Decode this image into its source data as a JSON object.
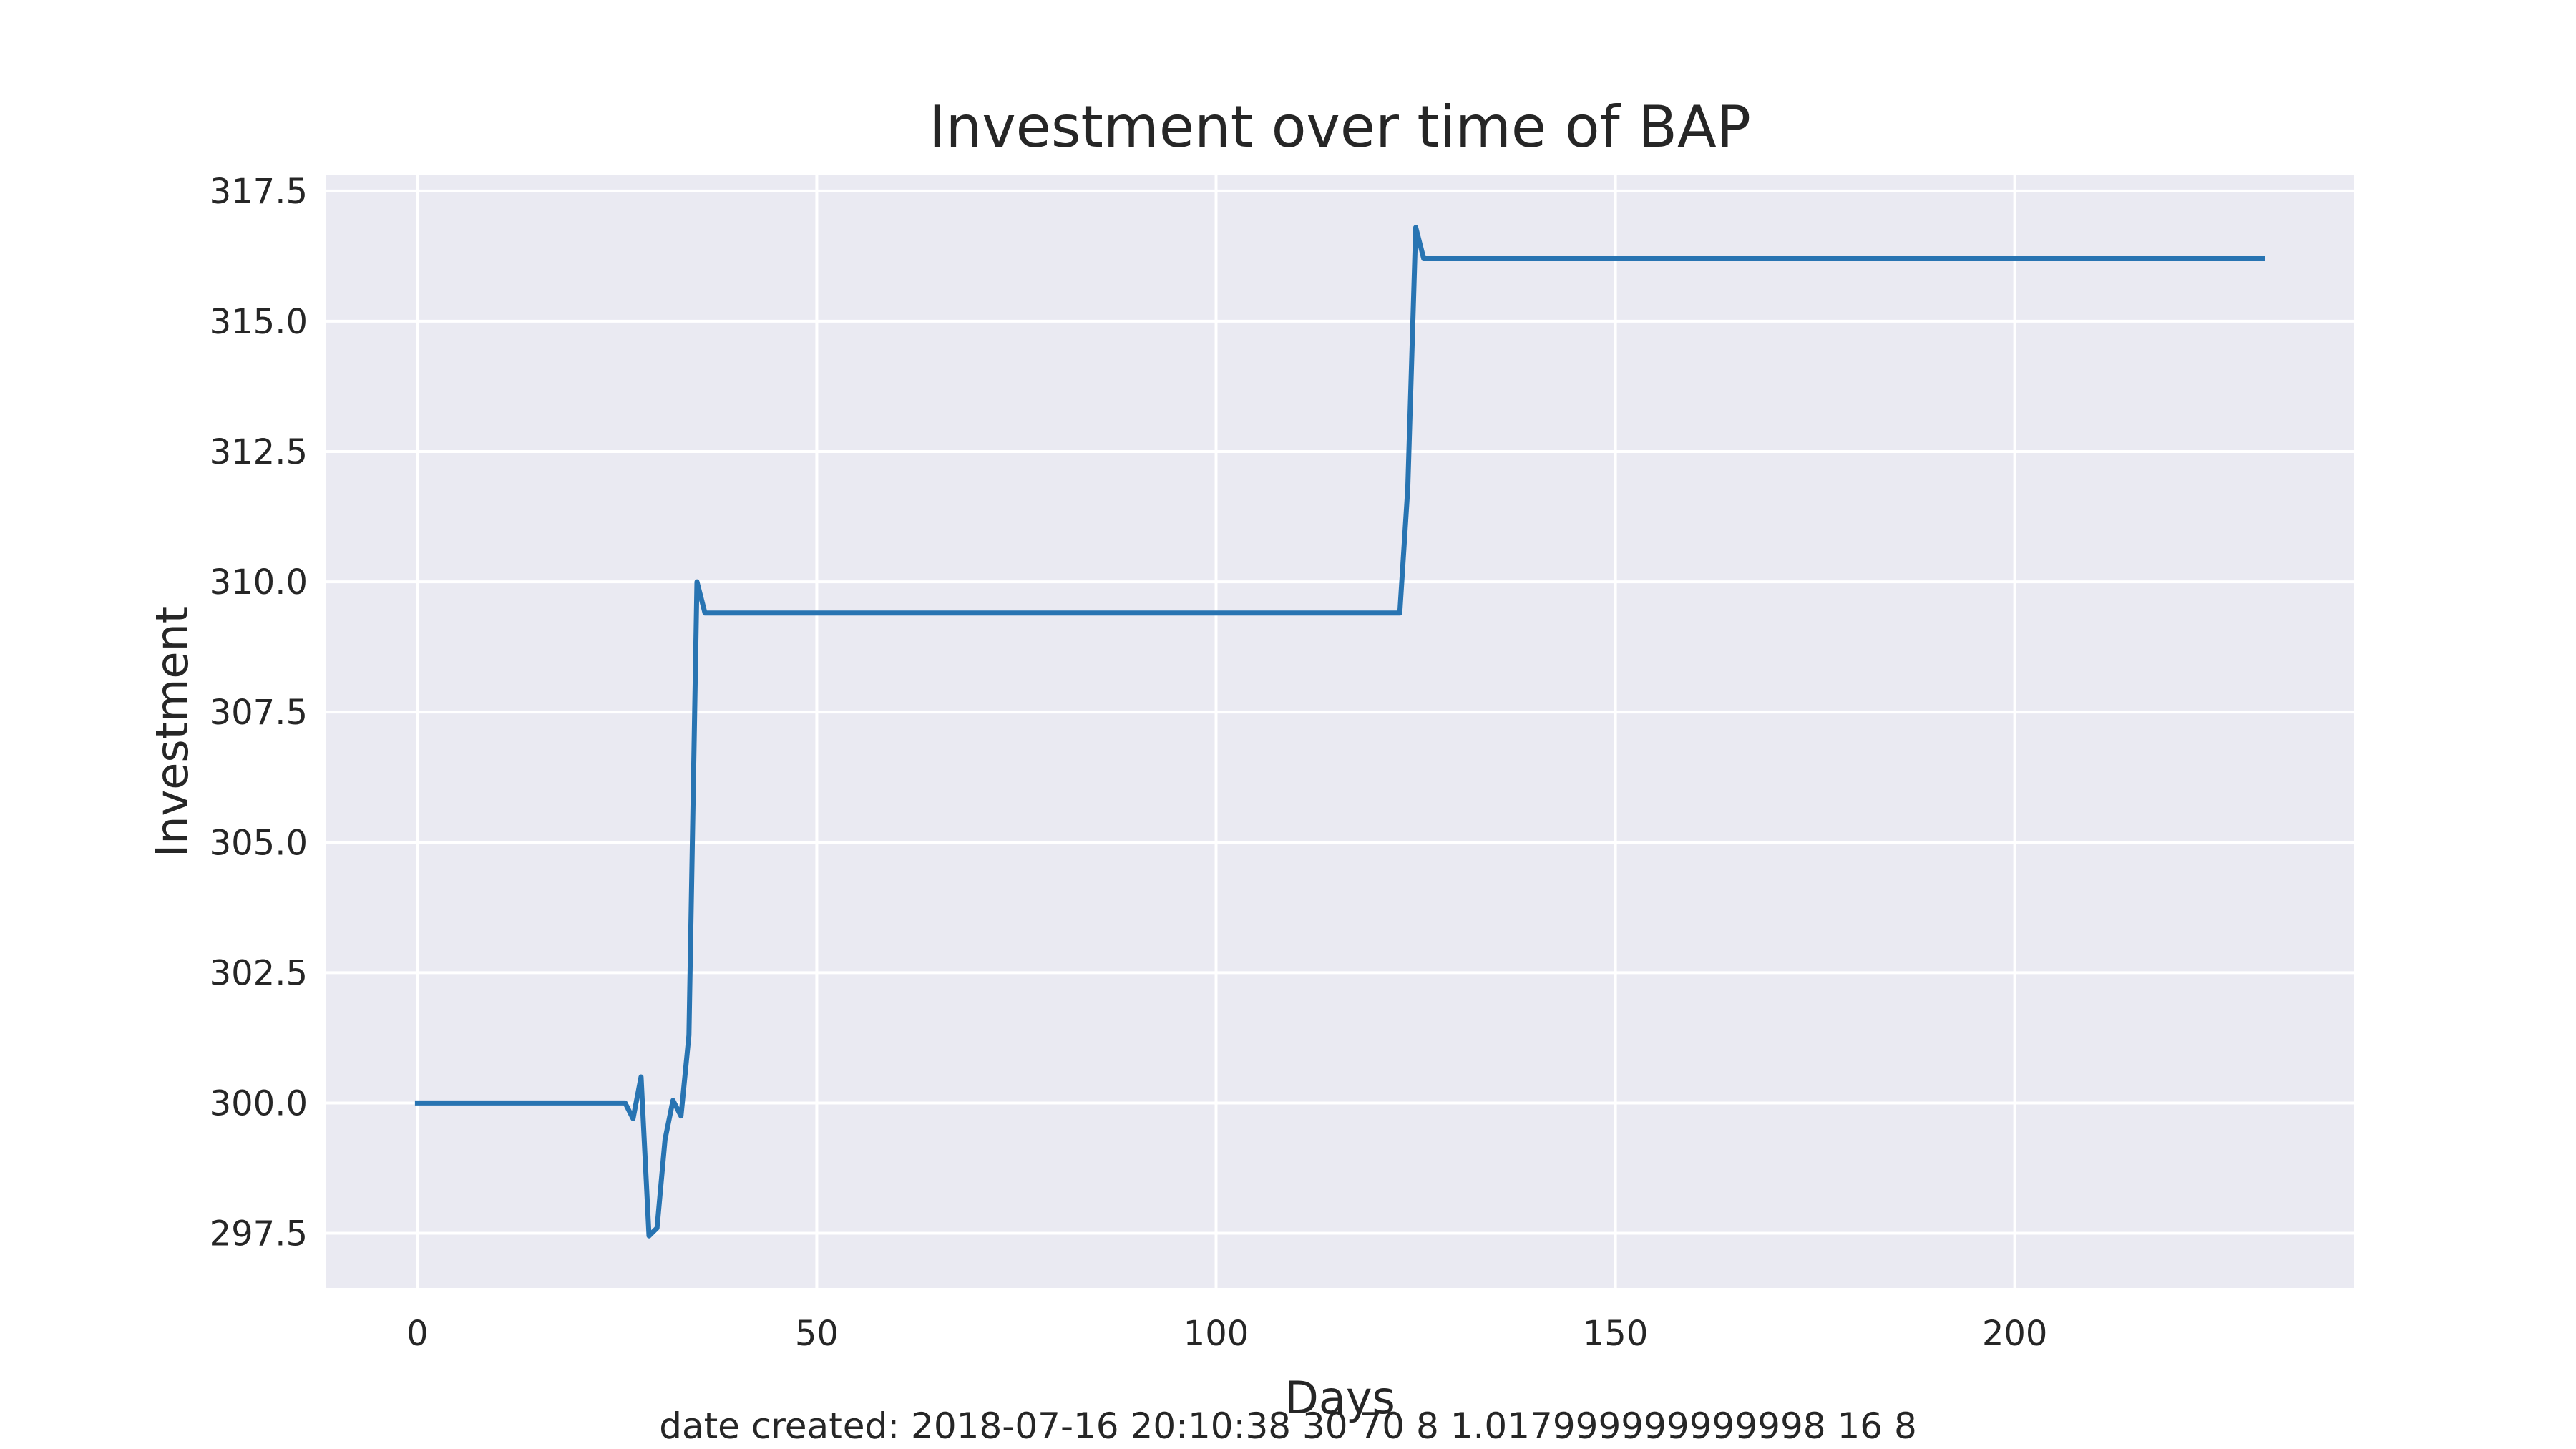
{
  "chart_data": {
    "type": "line",
    "title": "Investment over time of BAP",
    "xlabel": "Days",
    "ylabel": "Investment",
    "footer": "date created: 2018-07-16 20:10:38 30 70 8 1.017999999999998 16 8",
    "xlim": [
      -11.5,
      242.5
    ],
    "ylim": [
      296.45,
      317.8
    ],
    "x_ticks": [
      0,
      50,
      100,
      150,
      200
    ],
    "x_tick_labels": [
      "0",
      "50",
      "100",
      "150",
      "200"
    ],
    "y_ticks": [
      297.5,
      300.0,
      302.5,
      305.0,
      307.5,
      310.0,
      312.5,
      315.0,
      317.5
    ],
    "y_tick_labels": [
      "297.5",
      "300.0",
      "302.5",
      "305.0",
      "307.5",
      "310.0",
      "312.5",
      "315.0",
      "317.5"
    ],
    "grid": true,
    "background_color": "#eaeaf2",
    "line_color": "#2874b2",
    "series": [
      {
        "x": [
          0,
          26,
          27,
          28,
          29,
          30,
          31,
          32,
          33,
          34,
          35,
          36,
          50,
          100,
          123,
          124,
          125,
          126,
          150,
          200,
          231
        ],
        "y": [
          300.0,
          300.0,
          299.7,
          300.5,
          297.45,
          297.6,
          299.3,
          300.05,
          299.75,
          301.3,
          310.0,
          309.4,
          309.4,
          309.4,
          309.4,
          311.8,
          316.8,
          316.2,
          316.2,
          316.2,
          316.2
        ]
      }
    ]
  }
}
